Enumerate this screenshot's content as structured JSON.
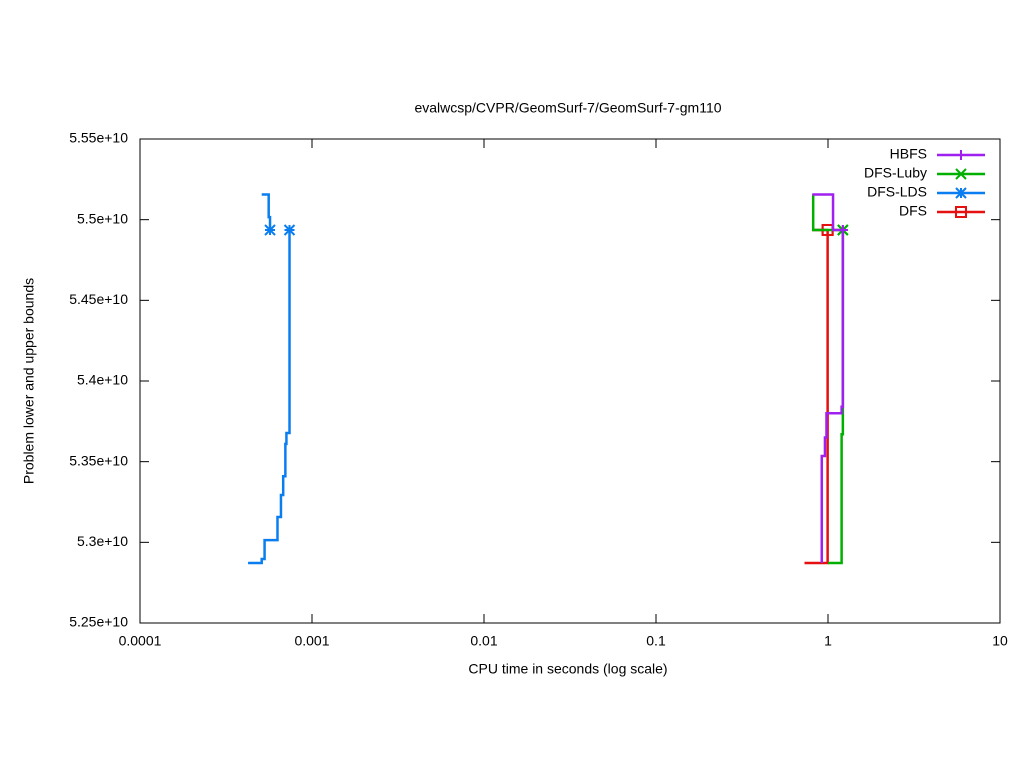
{
  "chart_data": {
    "type": "line",
    "title": "evalwcsp/CVPR/GeomSurf-7/GeomSurf-7-gm110",
    "xlabel": "CPU time in seconds (log scale)",
    "ylabel": "Problem lower and upper bounds",
    "xscale": "log",
    "xlim": [
      0.0001,
      10
    ],
    "xticks": [
      0.0001,
      0.001,
      0.01,
      0.1,
      1,
      10
    ],
    "ylim": [
      52500000000.0,
      55500000000.0
    ],
    "yticks": [
      {
        "value": 52500000000.0,
        "label": "5.25e+10"
      },
      {
        "value": 53000000000.0,
        "label": "5.3e+10"
      },
      {
        "value": 53500000000.0,
        "label": "5.35e+10"
      },
      {
        "value": 54000000000.0,
        "label": "5.4e+10"
      },
      {
        "value": 54500000000.0,
        "label": "5.45e+10"
      },
      {
        "value": 55000000000.0,
        "label": "5.5e+10"
      },
      {
        "value": 55500000000.0,
        "label": "5.55e+10"
      }
    ],
    "legend": "top-right",
    "series": [
      {
        "name": "HBFS",
        "color": "#a020f0",
        "marker": "plus",
        "x": [
          0.92,
          0.92,
          0.96,
          0.96,
          0.98,
          0.98,
          1.2,
          1.2,
          1.22,
          1.22,
          null,
          0.81,
          1.07,
          1.07,
          1.22
        ],
        "values": [
          52872000000.0,
          53535000000.0,
          53535000000.0,
          53650000000.0,
          53650000000.0,
          53800000000.0,
          53800000000.0,
          53840000000.0,
          53840000000.0,
          54936000000.0,
          null,
          55156000000.0,
          55156000000.0,
          54936000000.0,
          54936000000.0
        ]
      },
      {
        "name": "DFS-Luby",
        "color": "#00b000",
        "marker": "cross",
        "x": [
          1.0,
          1.2,
          1.2,
          1.22,
          1.22,
          null,
          0.82,
          0.82,
          1.22
        ],
        "values": [
          52872000000.0,
          52872000000.0,
          53670000000.0,
          53670000000.0,
          54936000000.0,
          null,
          55156000000.0,
          54936000000.0,
          54936000000.0
        ]
      },
      {
        "name": "DFS-LDS",
        "color": "#0a7ef0",
        "marker": "star",
        "x": [
          0.000425,
          0.00051,
          0.00051,
          0.00053,
          0.00053,
          0.00063,
          0.00063,
          0.00066,
          0.00066,
          0.00068,
          0.00068,
          0.0007,
          0.0007,
          0.00071,
          0.00071,
          0.00074,
          0.00074,
          0.00074,
          null,
          0.00051,
          0.00056,
          0.00056,
          0.00057,
          0.00057
        ],
        "values": [
          52872000000.0,
          52872000000.0,
          52897000000.0,
          52897000000.0,
          53014000000.0,
          53014000000.0,
          53157000000.0,
          53157000000.0,
          53293000000.0,
          53293000000.0,
          53410000000.0,
          53410000000.0,
          53610000000.0,
          53610000000.0,
          53678000000.0,
          53678000000.0,
          53944000000.0,
          54936000000.0,
          null,
          55156000000.0,
          55156000000.0,
          55016000000.0,
          55016000000.0,
          54936000000.0
        ]
      },
      {
        "name": "DFS",
        "color": "#e51010",
        "marker": "square",
        "x": [
          0.73,
          0.995,
          0.995,
          null,
          0.81,
          0.995
        ],
        "values": [
          52872000000.0,
          52872000000.0,
          54936000000.0,
          null,
          54936000000.0,
          54936000000.0
        ]
      }
    ]
  }
}
